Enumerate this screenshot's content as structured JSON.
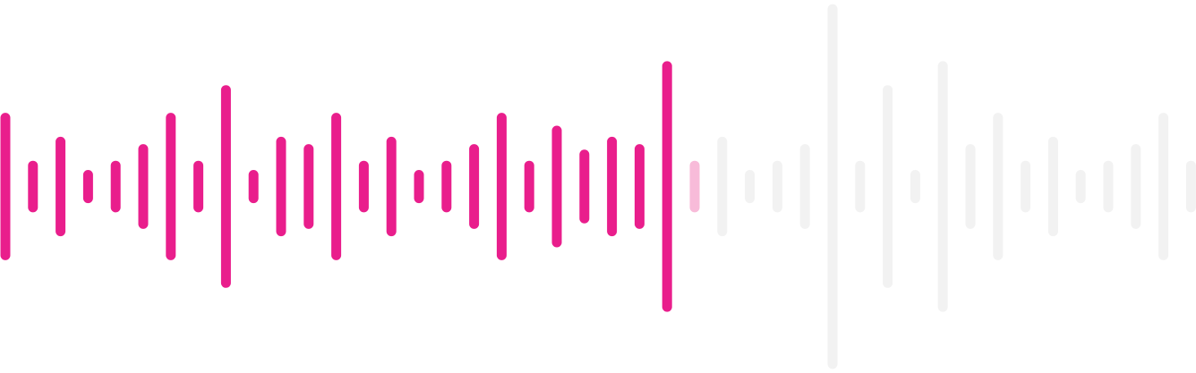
{
  "waveform": {
    "played_fraction": 0.577,
    "colors": {
      "played": "#E91E8C",
      "buffered": "#F8BBD9",
      "unplayed": "#F2F2F2",
      "background": "#FFFFFF"
    },
    "bars": [
      {
        "level": 0.4,
        "state": "played"
      },
      {
        "level": 0.14,
        "state": "played"
      },
      {
        "level": 0.27,
        "state": "played"
      },
      {
        "level": 0.09,
        "state": "played"
      },
      {
        "level": 0.14,
        "state": "played"
      },
      {
        "level": 0.23,
        "state": "played"
      },
      {
        "level": 0.4,
        "state": "played"
      },
      {
        "level": 0.14,
        "state": "played"
      },
      {
        "level": 0.55,
        "state": "played"
      },
      {
        "level": 0.09,
        "state": "played"
      },
      {
        "level": 0.27,
        "state": "played"
      },
      {
        "level": 0.23,
        "state": "played"
      },
      {
        "level": 0.4,
        "state": "played"
      },
      {
        "level": 0.14,
        "state": "played"
      },
      {
        "level": 0.27,
        "state": "played"
      },
      {
        "level": 0.09,
        "state": "played"
      },
      {
        "level": 0.14,
        "state": "played"
      },
      {
        "level": 0.23,
        "state": "played"
      },
      {
        "level": 0.4,
        "state": "played"
      },
      {
        "level": 0.14,
        "state": "played"
      },
      {
        "level": 0.33,
        "state": "played"
      },
      {
        "level": 0.2,
        "state": "played"
      },
      {
        "level": 0.27,
        "state": "played"
      },
      {
        "level": 0.23,
        "state": "played"
      },
      {
        "level": 0.68,
        "state": "played"
      },
      {
        "level": 0.14,
        "state": "buffered"
      },
      {
        "level": 0.27,
        "state": "unplayed"
      },
      {
        "level": 0.09,
        "state": "unplayed"
      },
      {
        "level": 0.14,
        "state": "unplayed"
      },
      {
        "level": 0.23,
        "state": "unplayed"
      },
      {
        "level": 0.99,
        "state": "unplayed"
      },
      {
        "level": 0.14,
        "state": "unplayed"
      },
      {
        "level": 0.55,
        "state": "unplayed"
      },
      {
        "level": 0.09,
        "state": "unplayed"
      },
      {
        "level": 0.68,
        "state": "unplayed"
      },
      {
        "level": 0.23,
        "state": "unplayed"
      },
      {
        "level": 0.4,
        "state": "unplayed"
      },
      {
        "level": 0.14,
        "state": "unplayed"
      },
      {
        "level": 0.27,
        "state": "unplayed"
      },
      {
        "level": 0.09,
        "state": "unplayed"
      },
      {
        "level": 0.14,
        "state": "unplayed"
      },
      {
        "level": 0.23,
        "state": "unplayed"
      },
      {
        "level": 0.4,
        "state": "unplayed"
      },
      {
        "level": 0.14,
        "state": "unplayed"
      }
    ]
  }
}
